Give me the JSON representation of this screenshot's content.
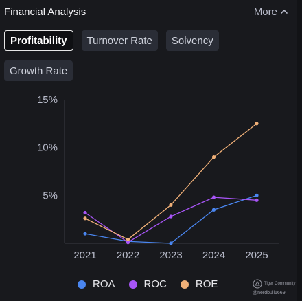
{
  "header": {
    "title": "Financial Analysis",
    "more_label": "More",
    "more_icon": "chevron-up-icon"
  },
  "tabs": [
    {
      "label": "Profitability",
      "active": true
    },
    {
      "label": "Turnover Rate",
      "active": false
    },
    {
      "label": "Solvency",
      "active": false
    },
    {
      "label": "Growth Rate",
      "active": false
    }
  ],
  "chart_data": {
    "type": "line",
    "x": [
      "2021",
      "2022",
      "2023",
      "2024",
      "2025"
    ],
    "yticks": [
      "5%",
      "10%",
      "15%"
    ],
    "ylim": [
      0,
      15
    ],
    "grid": false,
    "legend_position": "bottom",
    "series": [
      {
        "name": "ROA",
        "color": "#4a86f0",
        "values": [
          1.0,
          0.2,
          0.0,
          3.5,
          5.0
        ]
      },
      {
        "name": "ROC",
        "color": "#a855f7",
        "values": [
          3.2,
          0.1,
          2.8,
          4.8,
          4.5
        ]
      },
      {
        "name": "ROE",
        "color": "#f0b078",
        "values": [
          2.6,
          0.4,
          4.0,
          9.0,
          12.5
        ]
      }
    ]
  },
  "watermark": {
    "brand": "Tiger Community",
    "user": "@nerdbull1669"
  }
}
